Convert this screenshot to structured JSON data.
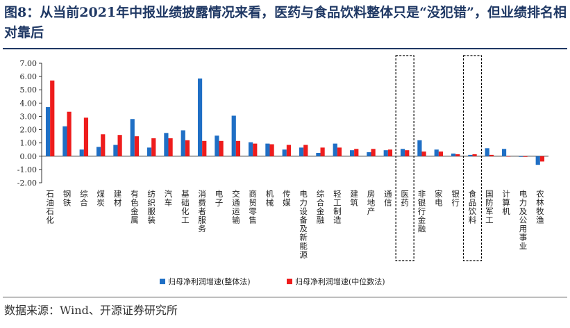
{
  "title": "图8：从当前2021年中报业绩披露情况来看，医药与食品饮料整体只是“没犯错”，但业绩排名相对靠后",
  "source": "数据来源：Wind、开源证券研究所",
  "colors": {
    "series1": "#1f6fc5",
    "series2": "#ee1c1c",
    "axis": "#333333",
    "highlight_box": "#000000"
  },
  "chart_data": {
    "type": "bar",
    "title": "",
    "xlabel": "",
    "ylabel": "",
    "ylim": [
      -2.0,
      7.0
    ],
    "yticks": [
      "7.00",
      "6.00",
      "5.00",
      "4.00",
      "3.00",
      "2.00",
      "1.00",
      "0.00",
      "-1.00",
      "-2.00"
    ],
    "legend_position": "bottom-center",
    "grid": false,
    "categories": [
      "石油石化",
      "钢铁",
      "综合",
      "煤炭",
      "建材",
      "有色金属",
      "纺织服装",
      "汽车",
      "基础化工",
      "消费者服务",
      "电子",
      "交通运输",
      "商贸零售",
      "机械",
      "传媒",
      "电力设备及新能源",
      "综合金融",
      "轻工制造",
      "建筑",
      "房地产",
      "通信",
      "医药",
      "非银行金融",
      "家电",
      "银行",
      "食品饮料",
      "国防军工",
      "计算机",
      "电力及公用事业",
      "农林牧渔"
    ],
    "highlighted": [
      "医药",
      "食品饮料"
    ],
    "series": [
      {
        "name": "归母净利润增速(整体法)",
        "values": [
          3.7,
          2.25,
          0.5,
          0.7,
          0.85,
          2.8,
          0.65,
          1.75,
          1.95,
          5.85,
          1.55,
          3.05,
          1.05,
          0.95,
          0.5,
          0.65,
          0.25,
          0.95,
          0.45,
          0.3,
          0.45,
          0.55,
          1.2,
          0.5,
          0.2,
          0.1,
          0.6,
          0.55,
          -0.05,
          -0.65
        ]
      },
      {
        "name": "归母净利润增速(中位数法)",
        "values": [
          5.7,
          3.35,
          2.9,
          1.65,
          1.6,
          1.5,
          1.35,
          1.35,
          1.2,
          1.15,
          1.15,
          1.15,
          0.95,
          0.9,
          0.85,
          0.85,
          0.65,
          0.65,
          0.55,
          0.55,
          0.5,
          0.45,
          0.35,
          0.35,
          0.15,
          0.15,
          0.1,
          0.0,
          -0.05,
          -0.4
        ]
      }
    ]
  }
}
